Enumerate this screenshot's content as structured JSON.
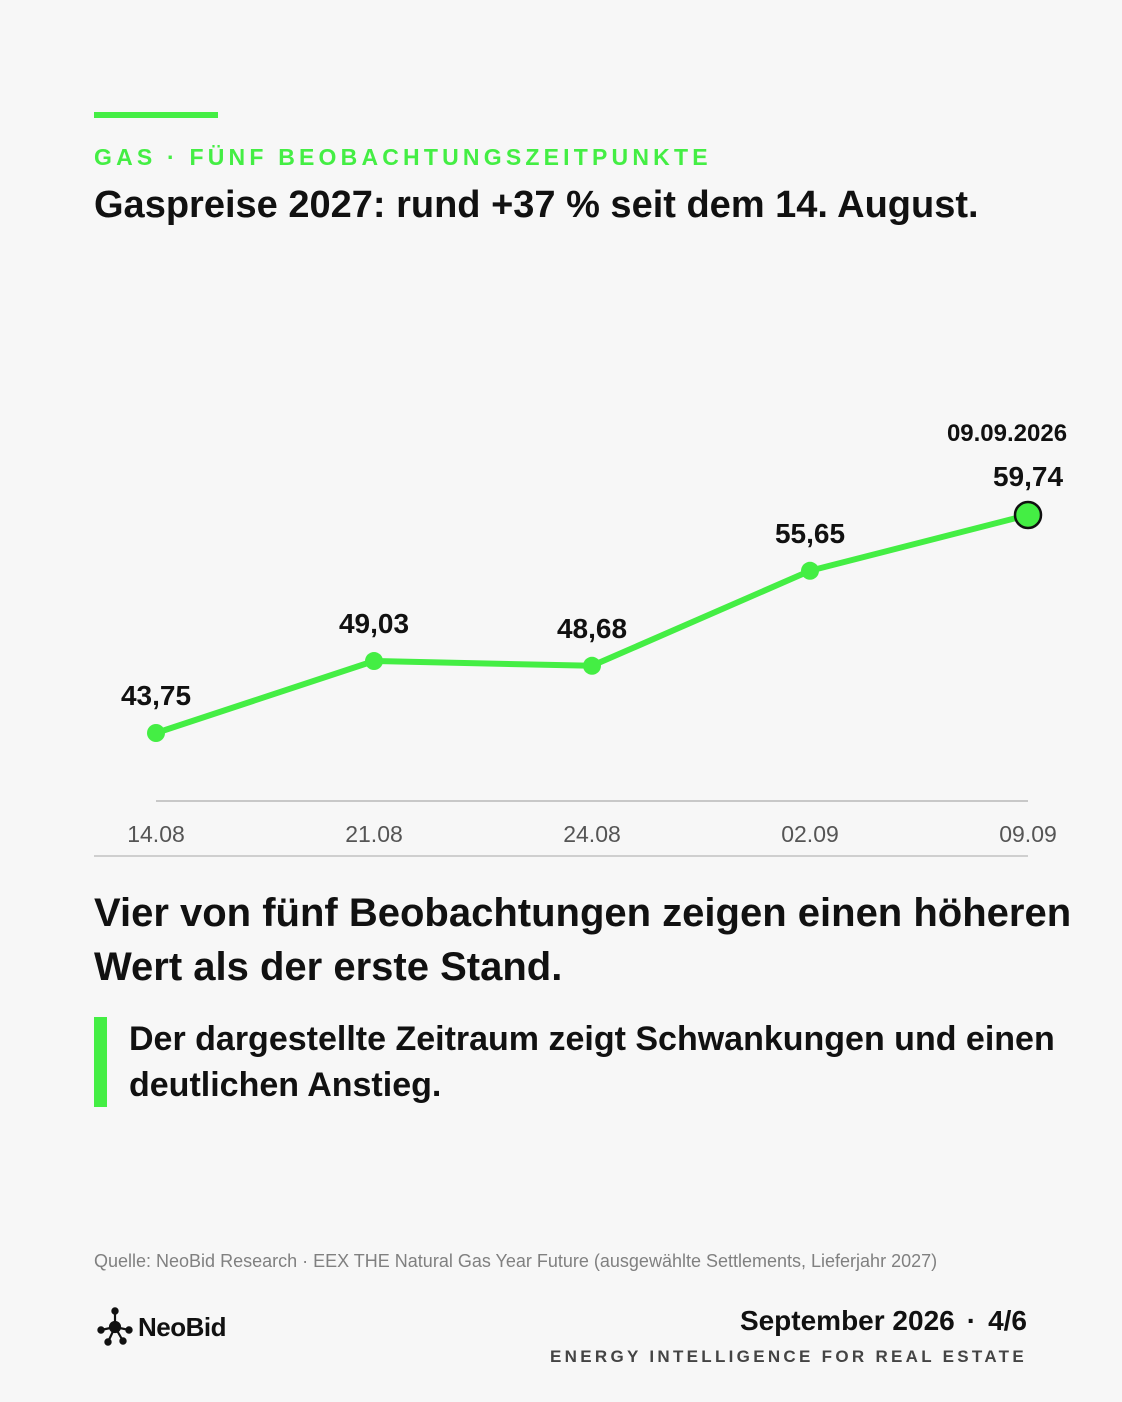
{
  "colors": {
    "accent": "#44ee44",
    "axis": "#c8c8c8",
    "text": "#111111",
    "muted": "#808080"
  },
  "header": {
    "eyebrow": "GAS · FÜNF BEOBACHTUNGSZEITPUNKTE",
    "headline": "Gaspreise 2027: rund +37 % seit dem 14. August."
  },
  "chart_data": {
    "type": "line",
    "x": [
      "14.08",
      "21.08",
      "24.08",
      "02.09",
      "09.09"
    ],
    "series": [
      {
        "values": [
          43.75,
          49.03,
          48.68,
          55.65,
          59.74
        ]
      }
    ],
    "data_labels": [
      "43,75",
      "49,03",
      "48,68",
      "55,65",
      "59,74"
    ],
    "highlight": {
      "index": 4,
      "label": "09.09.2026"
    },
    "ylim": [
      35,
      70
    ],
    "grid": false,
    "legend": "none",
    "title": "",
    "xlabel": "",
    "ylabel": ""
  },
  "body": {
    "statement": "Vier von fünf Beobachtungen zeigen einen höheren Wert als der erste Stand.",
    "quote": "Der dargestellte Zeitraum zeigt Schwankungen und einen deutlichen Anstieg."
  },
  "footer": {
    "source": "Quelle: NeoBid Research · EEX THE Natural Gas Year Future (ausgewählte Settlements, Lieferjahr 2027)",
    "logo_text": "NeoBid",
    "logo_icon": "network-node-icon",
    "date": "September 2026",
    "separator": "·",
    "page": "4/6",
    "tagline": "ENERGY INTELLIGENCE FOR REAL ESTATE"
  }
}
